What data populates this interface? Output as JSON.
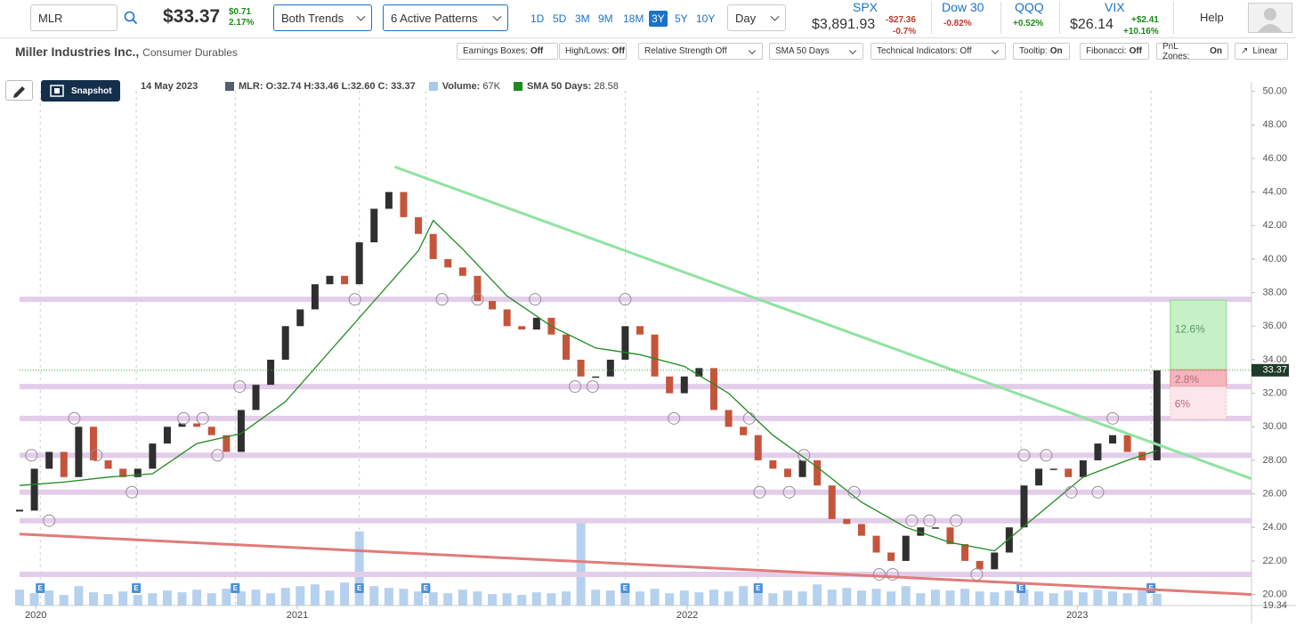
{
  "header": {
    "symbol": "MLR",
    "price": "$33.37",
    "change": "$0.71",
    "change_pct": "2.17%",
    "trend_select": "Both Trends",
    "pattern_select": "6 Active Patterns",
    "periods": [
      "1D",
      "5D",
      "3M",
      "9M",
      "18M",
      "3Y",
      "5Y",
      "10Y"
    ],
    "active_period": 5,
    "interval": "Day",
    "indices": [
      {
        "name": "SPX",
        "price": "$3,891.93",
        "change": "-$27.36",
        "change_pct": "-0.7%"
      },
      {
        "name": "Dow 30",
        "change_pct": "-0.82%"
      },
      {
        "name": "QQQ",
        "change_pct": "+0.52%"
      },
      {
        "name": "VIX",
        "price": "$26.14",
        "change": "+$2.41",
        "change_pct": "+10.16%"
      }
    ],
    "help": "Help"
  },
  "toolbar": {
    "company": "Miller Industries Inc.,",
    "sector": "Consumer Durables",
    "toggles": [
      {
        "label": "Earnings Boxes:",
        "state": "Off"
      },
      {
        "label": "High/Lows:",
        "state": "Off"
      },
      {
        "label": "Relative Strength Off"
      },
      {
        "label": "SMA 50 Days"
      },
      {
        "label": "Technical Indicators: Off"
      },
      {
        "label": "Tooltip:",
        "state": "On"
      },
      {
        "label": "Fibonacci:",
        "state": "Off"
      },
      {
        "label": "PnL Zones:",
        "state": "On"
      }
    ],
    "scale": "Linear"
  },
  "legend_bar": {
    "snapshot": "Snapshot",
    "date": "14 May 2023",
    "symbol": "MLR:",
    "ohlc": "O:32.74 H:33.46 L:32.60 C: 33.37",
    "volume_label": "Volume:",
    "volume": "67K",
    "sma_label": "SMA 50 Days:",
    "sma": "28.58"
  },
  "chart_data": {
    "type": "candlestick",
    "close": {
      "name": "MLR",
      "color": "#555e6e",
      "up_color": "#2f2f2f",
      "down_color": "#c4553b",
      "values": [
        25,
        27.5,
        28.5,
        27,
        30,
        28,
        27.5,
        27,
        27.5,
        29,
        30,
        30.2,
        30,
        29.5,
        28.5,
        31,
        32.5,
        34,
        36,
        37,
        38.5,
        39,
        38.5,
        41,
        43,
        44,
        42.5,
        41.5,
        40,
        39.5,
        39,
        37.5,
        37,
        36,
        35.8,
        36.5,
        35.5,
        34,
        33,
        33,
        34,
        36,
        35.5,
        33,
        32,
        33,
        33.5,
        31,
        30,
        29.5,
        28,
        27.5,
        27,
        28,
        26.5,
        24.5,
        24.2,
        23.5,
        22.5,
        22,
        23.5,
        24,
        24,
        23,
        22,
        21.5,
        22.5,
        24,
        26.5,
        27.5,
        27.5,
        27,
        28,
        29,
        29.5,
        28.5,
        28,
        33.37
      ]
    },
    "sma": {
      "name": "SMA 50 Days",
      "color": "#1e8a1e",
      "x": [
        0,
        3,
        6,
        9,
        12,
        15,
        18,
        21,
        24,
        27,
        28,
        30,
        33,
        36,
        39,
        42,
        45,
        48,
        51,
        54,
        57,
        60,
        63,
        66,
        69,
        72,
        75,
        77
      ],
      "values": [
        26.5,
        26.7,
        27,
        27.2,
        29,
        29.6,
        31.5,
        34.5,
        37.5,
        40.5,
        42.3,
        40.6,
        37.8,
        36,
        34.7,
        34.3,
        33.6,
        32,
        29.5,
        27.6,
        25.5,
        24,
        23.1,
        22.6,
        24.8,
        27,
        28,
        28.58
      ]
    },
    "volume": {
      "name": "Volume",
      "color": "#a9c9ea",
      "values": [
        90,
        70,
        85,
        60,
        110,
        75,
        65,
        80,
        60,
        70,
        85,
        75,
        90,
        70,
        95,
        80,
        90,
        70,
        100,
        110,
        120,
        85,
        130,
        420,
        110,
        100,
        95,
        80,
        75,
        70,
        90,
        80,
        65,
        70,
        60,
        75,
        70,
        80,
        480,
        90,
        85,
        120,
        80,
        95,
        70,
        85,
        75,
        90,
        80,
        110,
        95,
        70,
        85,
        80,
        120,
        90,
        100,
        85,
        95,
        80,
        110,
        70,
        90,
        85,
        95,
        80,
        75,
        85,
        90,
        80,
        70,
        85,
        75,
        90,
        80,
        70,
        85,
        67
      ]
    },
    "levels": {
      "color": "#e3cdea",
      "values": [
        37.6,
        32.4,
        30.5,
        28.3,
        26.1,
        24.4,
        21.2
      ]
    },
    "trendlines": [
      {
        "color": "#8fe3a0",
        "x": [
          25.4,
          83.4
        ],
        "y": [
          45.5,
          26.9
        ]
      },
      {
        "color": "#e07b78",
        "x": [
          0,
          83.4
        ],
        "y": [
          23.6,
          20.0
        ]
      }
    ],
    "pivots": {
      "x": [
        0.8,
        2.0,
        3.7,
        5.2,
        7.6,
        11.1,
        12.4,
        13.4,
        14.9,
        22.7,
        28.6,
        31.0,
        34.9,
        37.6,
        38.8,
        41.0,
        44.3,
        49.4,
        50.1,
        52.1,
        53.1,
        56.5,
        58.2,
        59.1,
        60.4,
        61.6,
        63.4,
        64.8,
        68.0,
        69.5,
        71.2,
        73.0,
        74.0
      ],
      "y": [
        28.3,
        24.4,
        30.5,
        28.3,
        26.1,
        30.5,
        30.5,
        28.3,
        32.4,
        37.6,
        37.6,
        37.6,
        37.6,
        32.4,
        32.4,
        37.6,
        30.5,
        30.5,
        26.1,
        26.1,
        28.3,
        26.1,
        21.2,
        21.2,
        24.4,
        24.4,
        24.4,
        21.2,
        28.3,
        28.3,
        26.1,
        26.1,
        30.5
      ]
    },
    "earnings": [
      {
        "x": 1.4,
        "label": "E"
      },
      {
        "x": 7.9,
        "label": "E"
      },
      {
        "x": 14.6,
        "label": "E"
      },
      {
        "x": 23.0,
        "label": "E"
      },
      {
        "x": 27.5,
        "label": "E"
      },
      {
        "x": 41.0,
        "label": "E"
      },
      {
        "x": 50.0,
        "label": "E"
      },
      {
        "x": 67.8,
        "label": "E"
      },
      {
        "x": 76.6,
        "label": "E"
      }
    ],
    "zone_x": [
      77.9,
      81.7
    ],
    "zones": [
      {
        "label": "12.6%",
        "from": 33.4,
        "to": 37.55,
        "color": "#c6f0c6"
      },
      {
        "label": "2.8%",
        "from": 32.4,
        "to": 33.4,
        "color": "#f6b4bd"
      },
      {
        "label": "6%",
        "from": 30.45,
        "to": 32.4,
        "color": "#fbe6ea"
      }
    ],
    "last_price": {
      "value": 33.37,
      "label": "33.37"
    },
    "xlim": [
      0,
      83.4
    ],
    "xticks": [
      {
        "value": 1.1,
        "label": "2020"
      },
      {
        "value": 18.8,
        "label": "2021"
      },
      {
        "value": 45.2,
        "label": "2022"
      },
      {
        "value": 71.6,
        "label": "2023"
      }
    ],
    "ylim": [
      19.34,
      50.3
    ],
    "yticks": [
      {
        "value": 19.34,
        "label": "19.34"
      },
      {
        "value": 20,
        "label": "20.00"
      },
      {
        "value": 22,
        "label": "22.00"
      },
      {
        "value": 24,
        "label": "24.00"
      },
      {
        "value": 26,
        "label": "26.00"
      },
      {
        "value": 28,
        "label": "28.00"
      },
      {
        "value": 30,
        "label": "30.00"
      },
      {
        "value": 32,
        "label": "32.00"
      },
      {
        "value": 34,
        "label": "34.00"
      },
      {
        "value": 36,
        "label": "36.00"
      },
      {
        "value": 38,
        "label": "38.00"
      },
      {
        "value": 40,
        "label": "40.00"
      },
      {
        "value": 42,
        "label": "42.00"
      },
      {
        "value": 44,
        "label": "44.00"
      },
      {
        "value": 46,
        "label": "46.00"
      },
      {
        "value": 48,
        "label": "48.00"
      },
      {
        "value": 50,
        "label": "50.00"
      }
    ]
  }
}
